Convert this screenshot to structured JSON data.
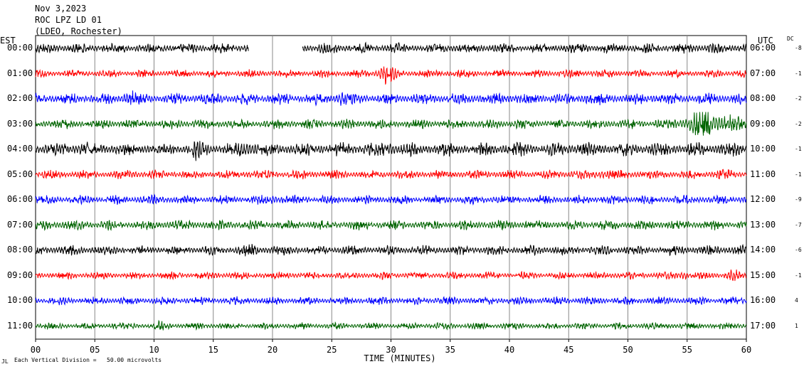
{
  "header": {
    "date": "Nov 3,2023",
    "station": "ROC LPZ LD 01",
    "network": "(LDEO, Rochester)"
  },
  "left_timezone": "EST",
  "right_timezone": "UTC",
  "dc_label": "DC",
  "left_times": [
    "00:00",
    "01:00",
    "02:00",
    "03:00",
    "04:00",
    "05:00",
    "06:00",
    "07:00",
    "08:00",
    "09:00",
    "10:00",
    "11:00"
  ],
  "right_times": [
    "06:00",
    "07:00",
    "08:00",
    "09:00",
    "10:00",
    "11:00",
    "12:00",
    "13:00",
    "14:00",
    "15:00",
    "16:00",
    "17:00"
  ],
  "dc_offsets": [
    "-8",
    "-1",
    "-2",
    "-2",
    "-1",
    "-1",
    "-9",
    "-7",
    "-6",
    "-1",
    "4",
    "1"
  ],
  "xaxis": {
    "label": "TIME (MINUTES)",
    "ticks": [
      "00",
      "05",
      "10",
      "15",
      "20",
      "25",
      "30",
      "35",
      "40",
      "45",
      "50",
      "55",
      "60"
    ]
  },
  "footer": {
    "scale_note": "Each Vertical Division =   50.00 microvolts",
    "logo_text": "JL"
  },
  "colors": {
    "cycle": [
      "#000000",
      "#ff0000",
      "#0000ff",
      "#006400"
    ],
    "grid": "#888888",
    "frame": "#000000"
  },
  "chart_data": {
    "type": "line",
    "title": "Nov 3,2023 ROC LPZ LD 01 (LDEO, Rochester)",
    "xlabel": "TIME (MINUTES)",
    "xlim": [
      0,
      60
    ],
    "rows": 12,
    "series": [
      {
        "left": "00:00",
        "right": "06:00",
        "dc": "-8",
        "amplitude": 0.18,
        "gaps": [
          [
            18,
            22.5
          ]
        ],
        "bursts": []
      },
      {
        "left": "01:00",
        "right": "07:00",
        "dc": "-1",
        "amplitude": 0.14,
        "gaps": [],
        "bursts": [
          [
            28.5,
            30.5,
            2.5
          ]
        ]
      },
      {
        "left": "02:00",
        "right": "08:00",
        "dc": "-2",
        "amplitude": 0.2,
        "gaps": [],
        "bursts": [
          [
            7,
            9,
            1.6
          ],
          [
            25,
            26.5,
            1.5
          ],
          [
            46,
            47,
            1.4
          ]
        ]
      },
      {
        "left": "03:00",
        "right": "09:00",
        "dc": "-2",
        "amplitude": 0.17,
        "gaps": [],
        "bursts": [
          [
            53.5,
            60,
            2.7
          ]
        ]
      },
      {
        "left": "04:00",
        "right": "10:00",
        "dc": "-1",
        "amplitude": 0.24,
        "gaps": [],
        "bursts": [
          [
            3,
            5,
            1.3
          ],
          [
            13,
            14,
            1.4
          ],
          [
            17,
            19,
            1.4
          ],
          [
            29,
            31,
            1.3
          ]
        ]
      },
      {
        "left": "05:00",
        "right": "11:00",
        "dc": "-1",
        "amplitude": 0.16,
        "gaps": [],
        "bursts": [
          [
            47,
            49,
            1.4
          ],
          [
            57,
            59,
            1.3
          ]
        ]
      },
      {
        "left": "06:00",
        "right": "12:00",
        "dc": "-9",
        "amplitude": 0.16,
        "gaps": [],
        "bursts": [
          [
            19,
            21,
            1.3
          ]
        ]
      },
      {
        "left": "07:00",
        "right": "13:00",
        "dc": "-7",
        "amplitude": 0.17,
        "gaps": [],
        "bursts": []
      },
      {
        "left": "08:00",
        "right": "14:00",
        "dc": "-6",
        "amplitude": 0.17,
        "gaps": [],
        "bursts": [
          [
            17,
            19,
            1.3
          ]
        ]
      },
      {
        "left": "09:00",
        "right": "15:00",
        "dc": "-1",
        "amplitude": 0.13,
        "gaps": [],
        "bursts": [
          [
            54,
            55.5,
            1.6
          ],
          [
            58,
            59.5,
            1.7
          ]
        ]
      },
      {
        "left": "10:00",
        "right": "16:00",
        "dc": "4",
        "amplitude": 0.14,
        "gaps": [],
        "bursts": []
      },
      {
        "left": "11:00",
        "right": "17:00",
        "dc": "1",
        "amplitude": 0.12,
        "gaps": [],
        "bursts": [
          [
            10,
            11,
            1.4
          ]
        ]
      }
    ]
  }
}
